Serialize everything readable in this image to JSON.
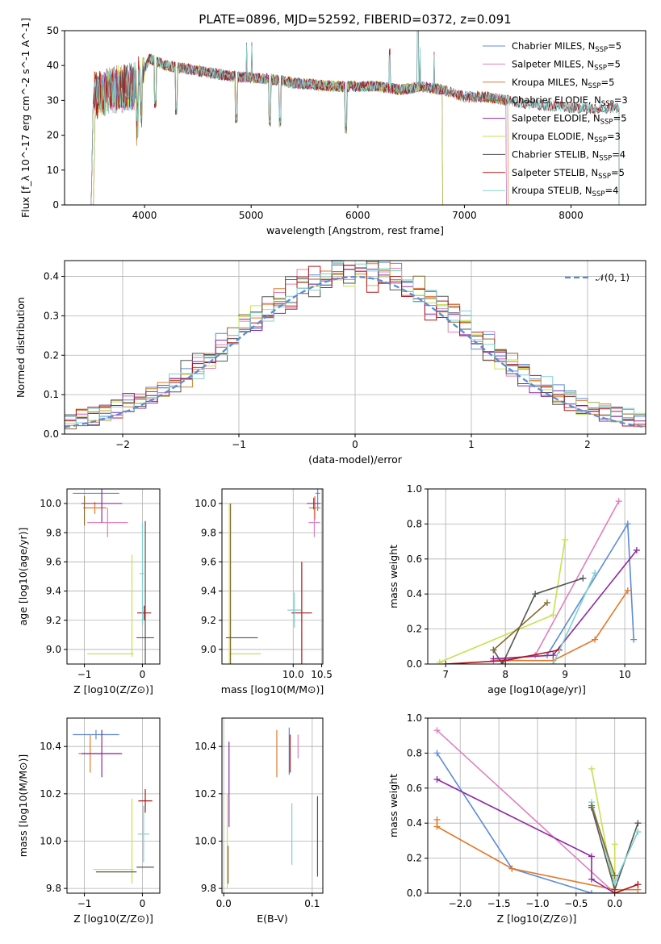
{
  "figure_title": "PLATE=0896, MJD=52592, FIBERID=0372, z=0.091",
  "colors": {
    "Chabrier MILES": "#5b8bd9",
    "Salpeter MILES": "#e07fbf",
    "Kroupa MILES": "#e07a2a",
    "Chabrier ELODIE": "#8a6a2a",
    "Salpeter ELODIE": "#8e2aa0",
    "Kroupa ELODIE": "#c8e050",
    "Chabrier STELIB": "#555555",
    "Salpeter STELIB": "#b01818",
    "Kroupa STELIB": "#80d0d0"
  },
  "chart_data": [
    {
      "id": "spectrum",
      "type": "line",
      "title": "PLATE=0896, MJD=52592, FIBERID=0372, z=0.091",
      "xlabel": "wavelength [Angstrom, rest frame]",
      "ylabel": "Flux [f_λ 10^-17 erg cm^-2 s^-1 A^-1]",
      "xlim": [
        3250,
        8700
      ],
      "ylim": [
        0,
        50
      ],
      "xticks": [
        4000,
        5000,
        6000,
        7000,
        8000
      ],
      "yticks": [
        0,
        10,
        20,
        30,
        40,
        50
      ],
      "grid": false,
      "legend_position": "top-right",
      "series": [
        {
          "name": "Chabrier MILES",
          "nssp": "5",
          "range": [
            3500,
            7400
          ]
        },
        {
          "name": "Salpeter MILES",
          "nssp": "5",
          "range": [
            3500,
            7400
          ]
        },
        {
          "name": "Kroupa MILES",
          "nssp": "5",
          "range": [
            3500,
            7420
          ]
        },
        {
          "name": "Chabrier ELODIE",
          "nssp": "3",
          "range": [
            3520,
            6800
          ]
        },
        {
          "name": "Salpeter ELODIE",
          "nssp": "5",
          "range": [
            3520,
            6800
          ]
        },
        {
          "name": "Kroupa ELODIE",
          "nssp": "3",
          "range": [
            3520,
            6800
          ]
        },
        {
          "name": "Chabrier STELIB",
          "nssp": "4",
          "range": [
            3500,
            8450
          ]
        },
        {
          "name": "Salpeter STELIB",
          "nssp": "5",
          "range": [
            3500,
            8450
          ]
        },
        {
          "name": "Kroupa STELIB",
          "nssp": "4",
          "range": [
            3500,
            8450
          ]
        }
      ],
      "continuum_x": [
        3500,
        3700,
        3900,
        4050,
        4200,
        4400,
        4600,
        4800,
        5000,
        5200,
        5400,
        5600,
        5800,
        6000,
        6200,
        6400,
        6600,
        6800,
        7000,
        7200,
        7400,
        7600,
        7800,
        8000,
        8200,
        8450
      ],
      "continuum_y": [
        31,
        33,
        34,
        42,
        40,
        39,
        38,
        37,
        36.5,
        36,
        35,
        34.5,
        34,
        34,
        34,
        33,
        34,
        33,
        31,
        31,
        30,
        29,
        28.5,
        28,
        27.5,
        28
      ]
    },
    {
      "id": "residuals",
      "type": "line",
      "xlabel": "(data-model)/error",
      "ylabel": "Normed distribution",
      "xlim": [
        -2.5,
        2.5
      ],
      "ylim": [
        0,
        0.44
      ],
      "xticks": [
        -2,
        -1,
        0,
        1,
        2
      ],
      "yticks": [
        0.0,
        0.1,
        0.2,
        0.3,
        0.4
      ],
      "grid": true,
      "legend_position": "top-right",
      "legend": [
        {
          "name": "𝒩(0, 1)",
          "style": "dashed",
          "color": "#5b8bd9"
        }
      ],
      "bin_width": 0.1
    },
    {
      "id": "age_vs_Z",
      "type": "scatter",
      "xlabel": "Z [log10(Z/Z⊙)]",
      "ylabel": "age [log10(age/yr)]",
      "xlim": [
        -1.3,
        0.3
      ],
      "ylim": [
        8.9,
        10.1
      ],
      "xticks": [
        -1,
        0
      ],
      "yticks": [
        9.0,
        9.2,
        9.4,
        9.6,
        9.8,
        10.0
      ],
      "grid": true,
      "points": [
        {
          "name": "Chabrier MILES",
          "x": -0.8,
          "y": 10.07,
          "xerr": 0.4,
          "yerr": 0.0
        },
        {
          "name": "Salpeter MILES",
          "x": -0.6,
          "y": 9.87,
          "xerr": 0.35,
          "yerr": 0.1
        },
        {
          "name": "Kroupa MILES",
          "x": -0.82,
          "y": 9.97,
          "xerr": 0.2,
          "yerr": 0.04
        },
        {
          "name": "Salpeter ELODIE",
          "x": -0.7,
          "y": 10.0,
          "xerr": 0.35,
          "yerr": 0.13
        },
        {
          "name": "Kroupa ELODIE",
          "x": -0.55,
          "y": 8.97,
          "xerr": 0.4,
          "yerr": 0.0
        },
        {
          "name": "Kroupa ELODIE",
          "x": -0.18,
          "y": 9.3,
          "xerr": 0.0,
          "yerr": 0.35
        },
        {
          "name": "Chabrier STELIB",
          "x": 0.05,
          "y": 9.08,
          "xerr": 0.15,
          "yerr": 0.8
        },
        {
          "name": "Salpeter STELIB",
          "x": 0.03,
          "y": 9.25,
          "xerr": 0.12,
          "yerr": 0.05
        },
        {
          "name": "Kroupa STELIB",
          "x": 0.0,
          "y": 9.52,
          "xerr": 0.05,
          "yerr": 0.35
        },
        {
          "name": "Chabrier ELODIE",
          "x": -1.0,
          "y": 9.95,
          "xerr": 0.0,
          "yerr": 0.1
        }
      ]
    },
    {
      "id": "age_vs_mass",
      "type": "scatter",
      "xlabel": "mass [log10(M/M⊙)]",
      "ylabel": "",
      "xlim": [
        8.75,
        10.52
      ],
      "ylim": [
        8.9,
        10.1
      ],
      "xticks": [
        10.0,
        10.5
      ],
      "yticks": [
        9.0,
        9.2,
        9.4,
        9.6,
        9.8,
        10.0
      ],
      "grid": true,
      "points": [
        {
          "name": "Chabrier MILES",
          "x": 10.43,
          "y": 10.07,
          "xerr": 0.04,
          "yerr": 0.12
        },
        {
          "name": "Salpeter MILES",
          "x": 10.37,
          "y": 9.87,
          "xerr": 0.1,
          "yerr": 0.1
        },
        {
          "name": "Kroupa MILES",
          "x": 10.38,
          "y": 9.97,
          "xerr": 0.1,
          "yerr": 0.08
        },
        {
          "name": "Salpeter ELODIE",
          "x": 10.36,
          "y": 10.0,
          "xerr": 0.12,
          "yerr": 0.04
        },
        {
          "name": "Kroupa ELODIE",
          "x": 9.15,
          "y": 8.97,
          "xerr": 0.28,
          "yerr": 0.0
        },
        {
          "name": "Kroupa ELODIE",
          "x": 8.88,
          "y": 9.45,
          "xerr": 0.0,
          "yerr": 0.55
        },
        {
          "name": "Chabrier ELODIE",
          "x": 8.9,
          "y": 9.45,
          "xerr": 0.0,
          "yerr": 0.55
        },
        {
          "name": "Chabrier STELIB",
          "x": 9.1,
          "y": 9.08,
          "xerr": 0.28,
          "yerr": 0.0
        },
        {
          "name": "Salpeter STELIB",
          "x": 10.15,
          "y": 9.25,
          "xerr": 0.18,
          "yerr": 0.35
        },
        {
          "name": "Kroupa STELIB",
          "x": 10.02,
          "y": 9.27,
          "xerr": 0.12,
          "yerr": 0.12
        }
      ]
    },
    {
      "id": "weight_vs_age",
      "type": "line",
      "xlabel": "age [log10(age/yr)]",
      "ylabel": "mass weight",
      "xlim": [
        6.7,
        10.35
      ],
      "ylim": [
        0,
        1.0
      ],
      "xticks": [
        7,
        8,
        9,
        10
      ],
      "yticks": [
        0.0,
        0.2,
        0.4,
        0.6,
        0.8,
        1.0
      ],
      "grid": true,
      "series": [
        {
          "name": "Chabrier MILES",
          "x": [
            8.7,
            10.05,
            10.15
          ],
          "y": [
            0.05,
            0.8,
            0.14
          ]
        },
        {
          "name": "Salpeter MILES",
          "x": [
            7.8,
            8.5,
            9.9
          ],
          "y": [
            0.02,
            0.05,
            0.93
          ]
        },
        {
          "name": "Kroupa MILES",
          "x": [
            8.0,
            8.8,
            9.5,
            10.05
          ],
          "y": [
            0.02,
            0.02,
            0.14,
            0.42
          ]
        },
        {
          "name": "Salpeter ELODIE",
          "x": [
            7.8,
            8.8,
            10.2
          ],
          "y": [
            0.03,
            0.05,
            0.65
          ]
        },
        {
          "name": "Kroupa ELODIE",
          "x": [
            6.9,
            8.8,
            9.0
          ],
          "y": [
            0.01,
            0.28,
            0.71
          ]
        },
        {
          "name": "Chabrier STELIB",
          "x": [
            7.8,
            7.95,
            8.5,
            9.3
          ],
          "y": [
            0.08,
            0.0,
            0.4,
            0.49
          ]
        },
        {
          "name": "Salpeter STELIB",
          "x": [
            7.0,
            8.0,
            8.9
          ],
          "y": [
            0.0,
            0.02,
            0.08
          ]
        },
        {
          "name": "Kroupa STELIB",
          "x": [
            8.8,
            9.5
          ],
          "y": [
            0.0,
            0.52
          ]
        },
        {
          "name": "Chabrier ELODIE",
          "x": [
            7.8,
            8.7
          ],
          "y": [
            0.08,
            0.35
          ]
        }
      ]
    },
    {
      "id": "mass_vs_Z",
      "type": "scatter",
      "xlabel": "Z [log10(Z/Z⊙)]",
      "ylabel": "mass [log10(M/M⊙)]",
      "xlim": [
        -1.3,
        0.3
      ],
      "ylim": [
        9.78,
        10.52
      ],
      "xticks": [
        -1,
        0
      ],
      "yticks": [
        9.8,
        10.0,
        10.2,
        10.4
      ],
      "grid": true,
      "points": [
        {
          "name": "Chabrier MILES",
          "x": -0.8,
          "y": 10.45,
          "xerr": 0.4,
          "yerr": 0.02
        },
        {
          "name": "Salpeter MILES",
          "x": -0.55,
          "y": 10.37,
          "xerr": 0.15,
          "yerr": 0.0
        },
        {
          "name": "Kroupa MILES",
          "x": -0.9,
          "y": 10.37,
          "xerr": 0.2,
          "yerr": 0.08
        },
        {
          "name": "Salpeter ELODIE",
          "x": -0.7,
          "y": 10.37,
          "xerr": 0.35,
          "yerr": 0.1
        },
        {
          "name": "Kroupa ELODIE",
          "x": -0.5,
          "y": 9.88,
          "xerr": 0.35,
          "yerr": 0.0
        },
        {
          "name": "Kroupa ELODIE",
          "x": -0.18,
          "y": 10.0,
          "xerr": 0.0,
          "yerr": 0.18
        },
        {
          "name": "Chabrier STELIB",
          "x": -0.45,
          "y": 9.87,
          "xerr": 0.35,
          "yerr": 0.0
        },
        {
          "name": "Chabrier STELIB",
          "x": 0.05,
          "y": 9.89,
          "xerr": 0.15,
          "yerr": 0.0
        },
        {
          "name": "Salpeter STELIB",
          "x": 0.05,
          "y": 10.17,
          "xerr": 0.12,
          "yerr": 0.05
        },
        {
          "name": "Kroupa STELIB",
          "x": 0.02,
          "y": 10.03,
          "xerr": 0.1,
          "yerr": 0.12
        }
      ]
    },
    {
      "id": "mass_vs_ebv",
      "type": "scatter",
      "xlabel": "E(B-V)",
      "ylabel": "",
      "xlim": [
        -0.002,
        0.112
      ],
      "ylim": [
        9.78,
        10.52
      ],
      "xticks": [
        0.0,
        0.1
      ],
      "yticks": [
        9.8,
        10.0,
        10.2,
        10.4
      ],
      "grid": true,
      "points": [
        {
          "name": "Salpeter ELODIE",
          "x": 0.006,
          "y": 10.24,
          "xerr": 0,
          "yerr": 0.18
        },
        {
          "name": "Kroupa ELODIE",
          "x": 0.004,
          "y": 10.0,
          "xerr": 0,
          "yerr": 0.2
        },
        {
          "name": "Chabrier ELODIE",
          "x": 0.005,
          "y": 9.9,
          "xerr": 0,
          "yerr": 0.08
        },
        {
          "name": "Kroupa MILES",
          "x": 0.06,
          "y": 10.37,
          "xerr": 0,
          "yerr": 0.1
        },
        {
          "name": "Chabrier MILES",
          "x": 0.074,
          "y": 10.38,
          "xerr": 0,
          "yerr": 0.1
        },
        {
          "name": "Salpeter STELIB",
          "x": 0.075,
          "y": 10.37,
          "xerr": 0,
          "yerr": 0.08
        },
        {
          "name": "Salpeter MILES",
          "x": 0.084,
          "y": 10.4,
          "xerr": 0,
          "yerr": 0.05
        },
        {
          "name": "Kroupa STELIB",
          "x": 0.077,
          "y": 10.03,
          "xerr": 0,
          "yerr": 0.13
        },
        {
          "name": "Chabrier STELIB",
          "x": 0.106,
          "y": 10.02,
          "xerr": 0,
          "yerr": 0.17
        }
      ]
    },
    {
      "id": "weight_vs_Z",
      "type": "line",
      "xlabel": "Z [log10(Z/Z⊙)]",
      "ylabel": "mass weight",
      "xlim": [
        -2.42,
        0.4
      ],
      "ylim": [
        0,
        1.0
      ],
      "xticks": [
        -2.0,
        -1.5,
        -1.0,
        -0.5,
        0.0
      ],
      "yticks": [
        0.0,
        0.2,
        0.4,
        0.6,
        0.8,
        1.0
      ],
      "grid": true,
      "series": [
        {
          "name": "Chabrier MILES",
          "x": [
            -2.3,
            -1.33,
            -0.3,
            0.0
          ],
          "y": [
            0.8,
            0.14,
            0.0,
            0.0
          ]
        },
        {
          "name": "Salpeter MILES",
          "x": [
            -2.3,
            0.0,
            0.3
          ],
          "y": [
            0.93,
            0.0,
            0.05
          ]
        },
        {
          "name": "Kroupa MILES",
          "x": [
            -2.3,
            -2.3,
            -1.33,
            0.0,
            0.3
          ],
          "y": [
            0.42,
            0.38,
            0.14,
            0.02,
            0.02
          ]
        },
        {
          "name": "Salpeter ELODIE",
          "x": [
            -2.3,
            -0.3,
            -0.3,
            0.0
          ],
          "y": [
            0.65,
            0.21,
            0.08,
            0.0
          ]
        },
        {
          "name": "Kroupa ELODIE",
          "x": [
            -0.3,
            0.0,
            0.0
          ],
          "y": [
            0.71,
            0.0,
            0.28
          ]
        },
        {
          "name": "Chabrier STELIB",
          "x": [
            -0.3,
            0.0,
            0.3
          ],
          "y": [
            0.49,
            0.02,
            0.4
          ]
        },
        {
          "name": "Salpeter STELIB",
          "x": [
            0.0,
            0.3
          ],
          "y": [
            0.0,
            0.05
          ]
        },
        {
          "name": "Kroupa STELIB",
          "x": [
            -0.3,
            0.0,
            0.3
          ],
          "y": [
            0.52,
            0.06,
            0.35
          ]
        },
        {
          "name": "Chabrier ELODIE",
          "x": [
            -0.3,
            0.0
          ],
          "y": [
            0.5,
            0.1
          ]
        }
      ]
    }
  ]
}
